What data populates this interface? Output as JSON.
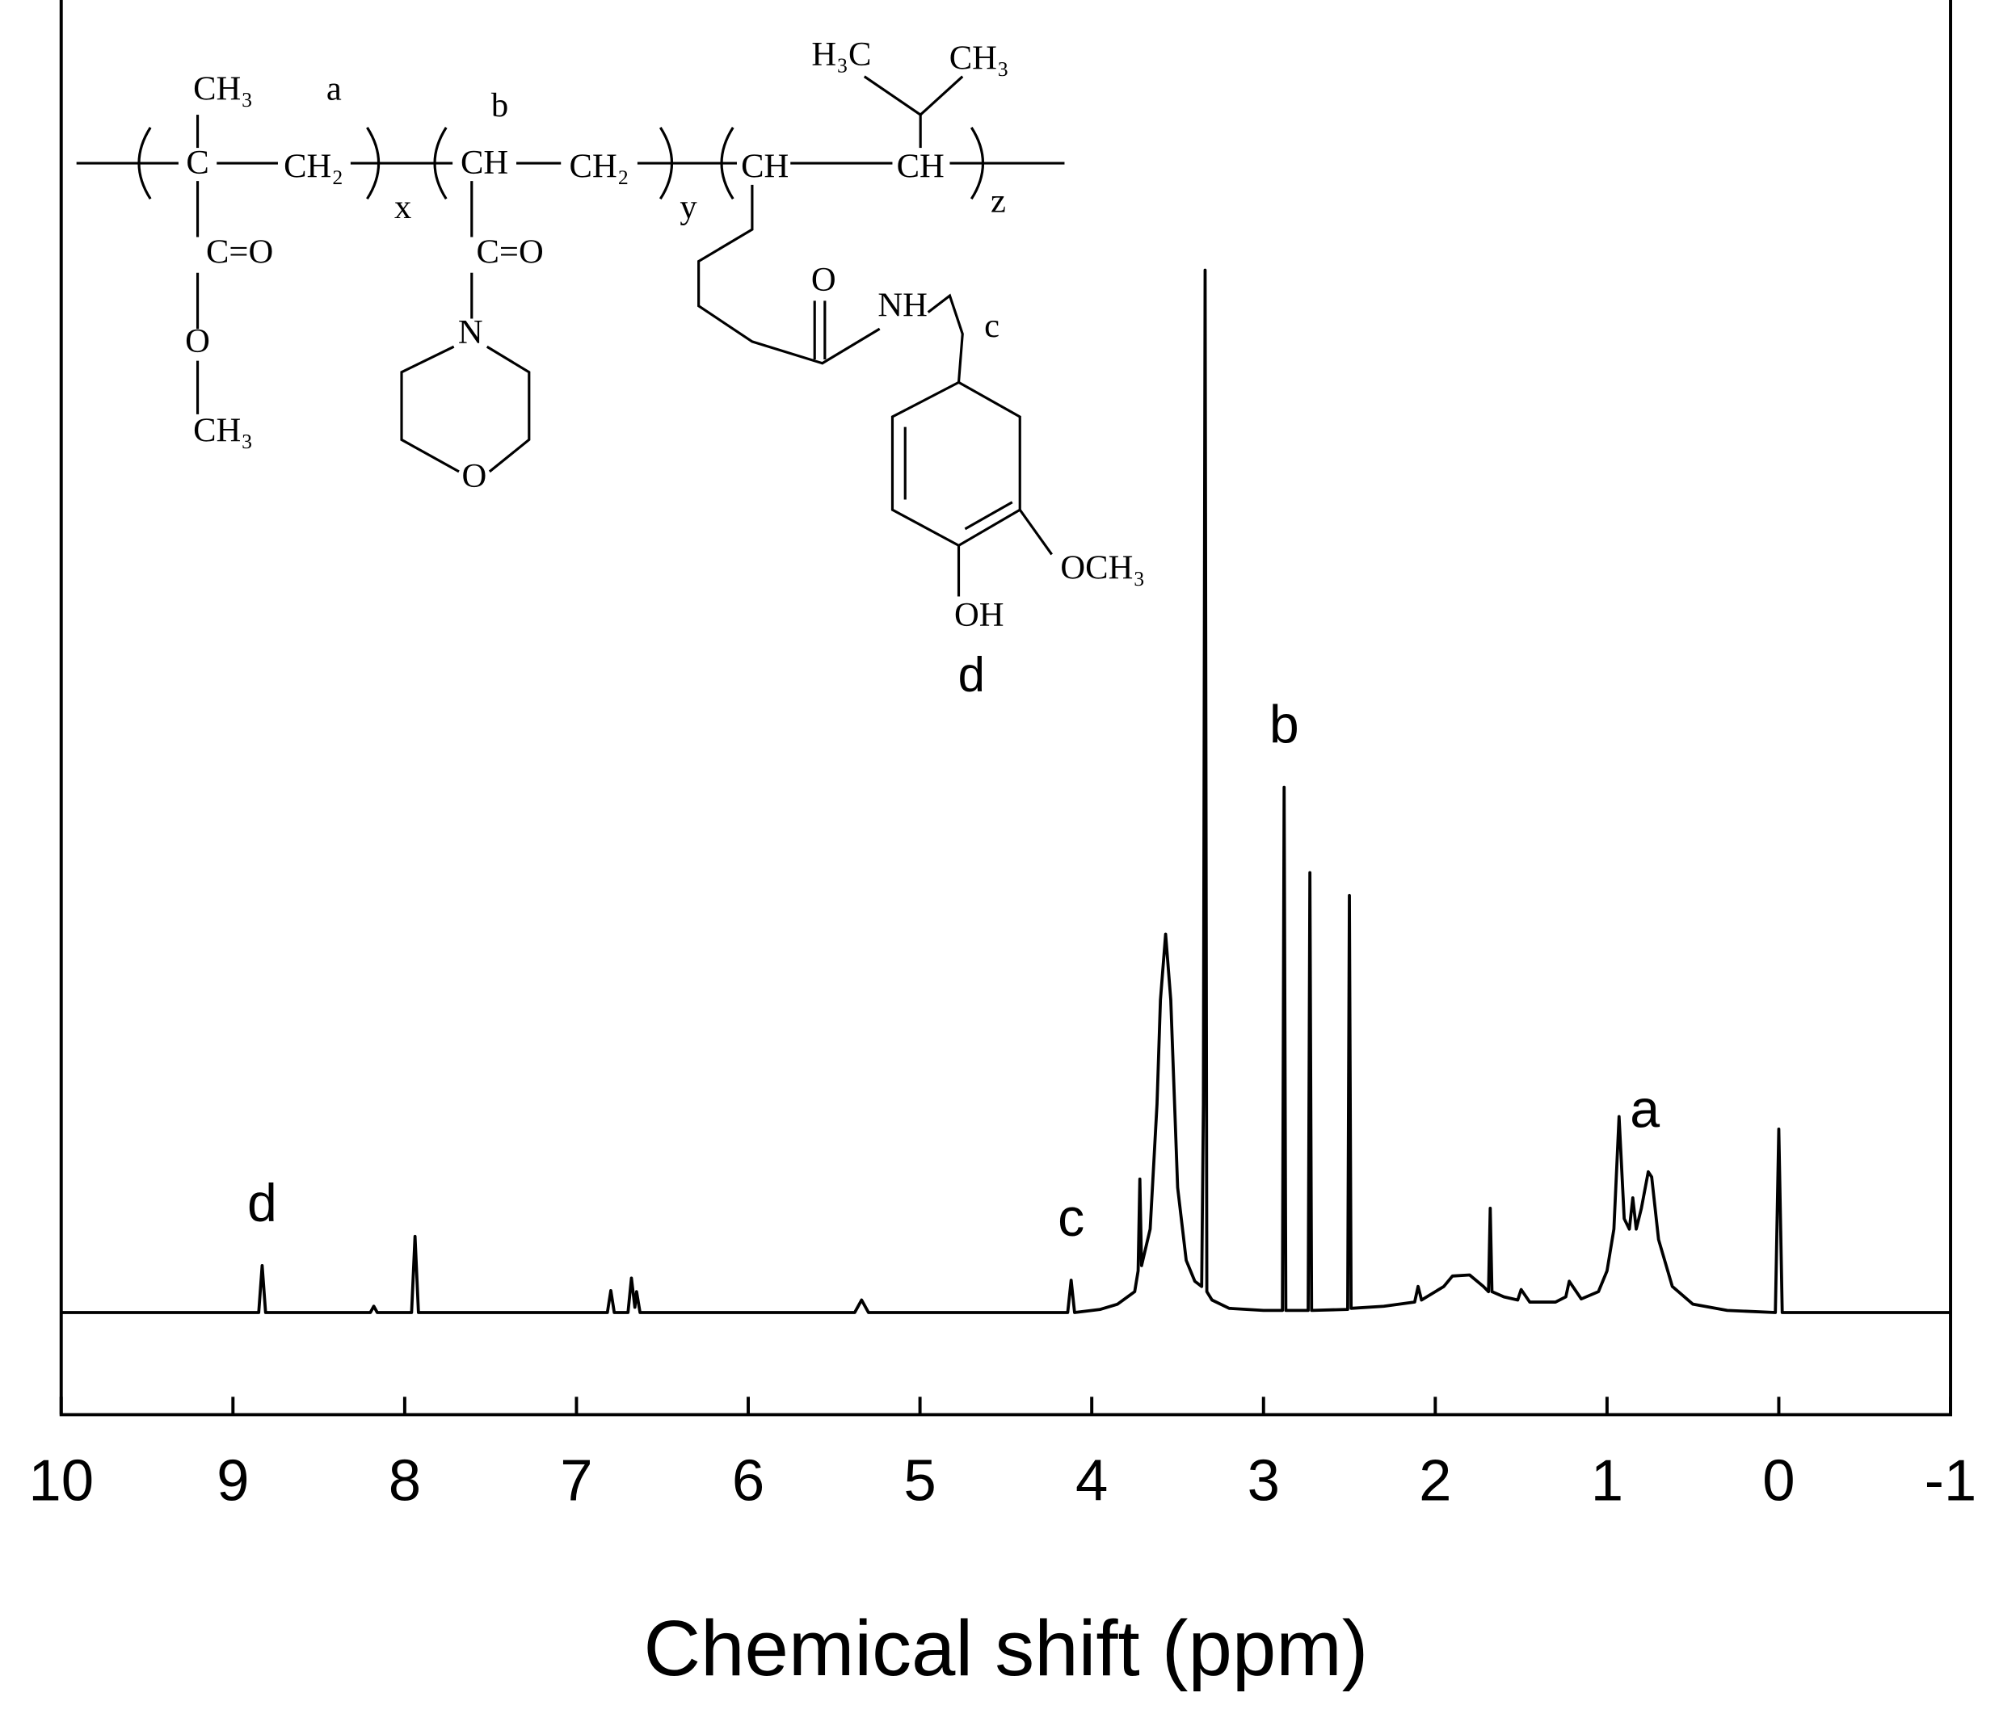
{
  "chart_data": {
    "type": "line",
    "x_label": "Chemical shift (ppm)",
    "xlim": [
      10,
      -1
    ],
    "xticks": [
      10,
      9,
      8,
      7,
      6,
      5,
      4,
      3,
      2,
      1,
      0,
      -1
    ],
    "ylim": [
      -9.8,
      124.7
    ],
    "color": "#000000",
    "x": [
      10,
      8.85,
      8.83,
      8.81,
      8.2,
      8.18,
      8.16,
      7.96,
      7.94,
      7.92,
      6.82,
      6.8,
      6.78,
      6.7,
      6.68,
      6.66,
      6.65,
      6.63,
      5.38,
      5.34,
      5.3,
      4.14,
      4.12,
      4.1,
      3.95,
      3.85,
      3.75,
      3.73,
      3.72,
      3.71,
      3.66,
      3.62,
      3.6,
      3.57,
      3.54,
      3.5,
      3.45,
      3.4,
      3.36,
      3.35,
      3.34,
      3.33,
      3.3,
      3.2,
      3.0,
      2.89,
      2.88,
      2.87,
      2.74,
      2.73,
      2.72,
      2.51,
      2.5,
      2.49,
      2.3,
      2.12,
      2.1,
      2.08,
      1.95,
      1.9,
      1.8,
      1.72,
      1.69,
      1.68,
      1.67,
      1.6,
      1.52,
      1.5,
      1.45,
      1.3,
      1.24,
      1.22,
      1.15,
      1.05,
      1.0,
      0.96,
      0.93,
      0.9,
      0.87,
      0.85,
      0.83,
      0.8,
      0.76,
      0.74,
      0.7,
      0.62,
      0.5,
      0.3,
      0.02,
      0.0,
      -0.02,
      -1
    ],
    "values": [
      0,
      0,
      4.5,
      0,
      0,
      0.6,
      0,
      0,
      7.3,
      0,
      0,
      2.1,
      0,
      0,
      3.3,
      0.5,
      2,
      0,
      0,
      1.2,
      0,
      0,
      3.1,
      0,
      0.3,
      0.8,
      2,
      4,
      12.8,
      4.5,
      8,
      20,
      30,
      36.3,
      30,
      12,
      5,
      3,
      2.5,
      20,
      100,
      2,
      1.2,
      0.4,
      0.2,
      0.2,
      50.4,
      0.2,
      0.2,
      42.2,
      0.2,
      0.3,
      40,
      0.4,
      0.6,
      1,
      2.5,
      1.2,
      2.5,
      3.5,
      3.6,
      2.5,
      2,
      10,
      2,
      1.5,
      1.2,
      2.2,
      1,
      1,
      1.5,
      3,
      1.3,
      2,
      4,
      8,
      18.8,
      9,
      8,
      11,
      8,
      10,
      13.5,
      13,
      7,
      2.5,
      0.8,
      0.2,
      0,
      17.6,
      0,
      0
    ],
    "annotations": [
      {
        "text": "d",
        "x": 8.83
      },
      {
        "text": "c",
        "x": 4.12
      },
      {
        "text": "b",
        "x": 2.88
      },
      {
        "text": "a",
        "x": 0.78
      }
    ]
  },
  "structure": {
    "labels": [
      "CH₃",
      "a",
      "b",
      "C",
      "CH₂",
      "x",
      "CH",
      "CH₂",
      "y",
      "CH",
      "CH",
      "z",
      "H₃C",
      "CH₃",
      "C=O",
      "O",
      "CH₃",
      "C=O",
      "N",
      "O",
      "O",
      "NH",
      "c",
      "OCH₃",
      "OH",
      "d"
    ]
  }
}
